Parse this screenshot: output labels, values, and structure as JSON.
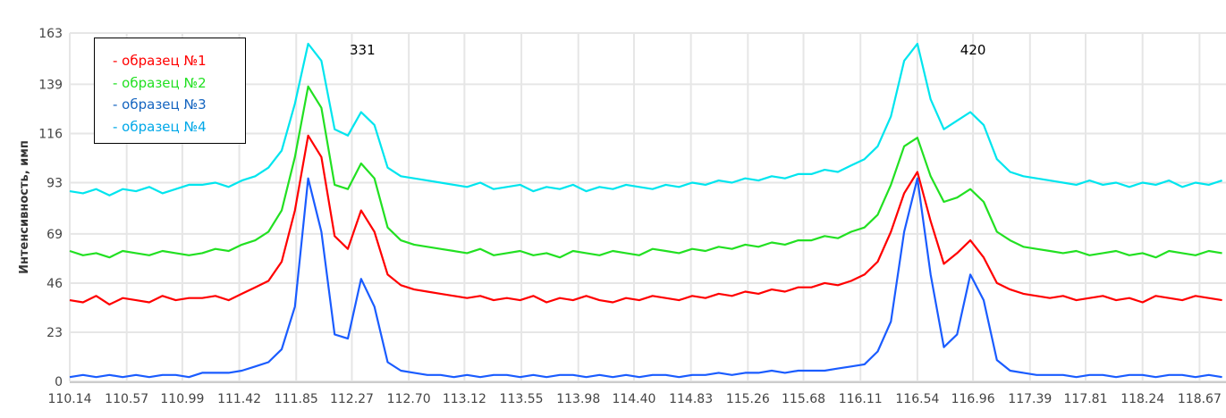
{
  "chart_data": {
    "type": "line",
    "title": "",
    "xlabel": "",
    "ylabel": "Интенсивность, имп",
    "xlim": [
      110.14,
      118.87
    ],
    "ylim": [
      0,
      163
    ],
    "grid": true,
    "legend_position": "top-left",
    "x_ticks": [
      "110.14",
      "110.57",
      "110.99",
      "111.42",
      "111.85",
      "112.27",
      "112.70",
      "113.12",
      "113.55",
      "113.98",
      "114.40",
      "114.83",
      "115.26",
      "115.68",
      "116.11",
      "116.54",
      "116.96",
      "117.39",
      "117.81",
      "118.24",
      "118.67"
    ],
    "y_ticks": [
      "0",
      "23",
      "46",
      "69",
      "93",
      "116",
      "139",
      "163"
    ],
    "annotations": [
      {
        "text": "331",
        "x": 112.35,
        "y": 153
      },
      {
        "text": "420",
        "x": 116.96,
        "y": 153
      }
    ],
    "x": [
      110.14,
      110.24,
      110.34,
      110.44,
      110.54,
      110.64,
      110.74,
      110.84,
      110.94,
      111.04,
      111.14,
      111.24,
      111.34,
      111.44,
      111.54,
      111.64,
      111.74,
      111.84,
      111.94,
      112.04,
      112.14,
      112.24,
      112.34,
      112.44,
      112.54,
      112.64,
      112.74,
      112.84,
      112.94,
      113.04,
      113.14,
      113.24,
      113.34,
      113.44,
      113.54,
      113.64,
      113.74,
      113.84,
      113.94,
      114.04,
      114.14,
      114.24,
      114.34,
      114.44,
      114.54,
      114.64,
      114.74,
      114.84,
      114.94,
      115.04,
      115.14,
      115.24,
      115.34,
      115.44,
      115.54,
      115.64,
      115.74,
      115.84,
      115.94,
      116.04,
      116.14,
      116.24,
      116.34,
      116.44,
      116.54,
      116.64,
      116.74,
      116.84,
      116.94,
      117.04,
      117.14,
      117.24,
      117.34,
      117.44,
      117.54,
      117.64,
      117.74,
      117.84,
      117.94,
      118.04,
      118.14,
      118.24,
      118.34,
      118.44,
      118.54,
      118.64,
      118.74,
      118.84
    ],
    "series": [
      {
        "name": "- образец №1",
        "color": "#ff0000",
        "values": [
          38,
          37,
          40,
          36,
          39,
          38,
          37,
          40,
          38,
          39,
          39,
          40,
          38,
          41,
          44,
          47,
          56,
          80,
          115,
          105,
          68,
          62,
          80,
          70,
          50,
          45,
          43,
          42,
          41,
          40,
          39,
          40,
          38,
          39,
          38,
          40,
          37,
          39,
          38,
          40,
          38,
          37,
          39,
          38,
          40,
          39,
          38,
          40,
          39,
          41,
          40,
          42,
          41,
          43,
          42,
          44,
          44,
          46,
          45,
          47,
          50,
          56,
          70,
          88,
          98,
          75,
          55,
          60,
          66,
          58,
          46,
          43,
          41,
          40,
          39,
          40,
          38,
          39,
          40,
          38,
          39,
          37,
          40,
          39,
          38,
          40,
          39,
          38
        ]
      },
      {
        "name": "- образец №2",
        "color": "#22e022",
        "values": [
          61,
          59,
          60,
          58,
          61,
          60,
          59,
          61,
          60,
          59,
          60,
          62,
          61,
          64,
          66,
          70,
          80,
          105,
          138,
          128,
          92,
          90,
          102,
          95,
          72,
          66,
          64,
          63,
          62,
          61,
          60,
          62,
          59,
          60,
          61,
          59,
          60,
          58,
          61,
          60,
          59,
          61,
          60,
          59,
          62,
          61,
          60,
          62,
          61,
          63,
          62,
          64,
          63,
          65,
          64,
          66,
          66,
          68,
          67,
          70,
          72,
          78,
          92,
          110,
          114,
          96,
          84,
          86,
          90,
          84,
          70,
          66,
          63,
          62,
          61,
          60,
          61,
          59,
          60,
          61,
          59,
          60,
          58,
          61,
          60,
          59,
          61,
          60
        ]
      },
      {
        "name": "- образец №3",
        "color": "#1a5cff",
        "legend_color": "#1565c0",
        "values": [
          2,
          3,
          2,
          3,
          2,
          3,
          2,
          3,
          3,
          2,
          4,
          4,
          4,
          5,
          7,
          9,
          15,
          35,
          95,
          70,
          22,
          20,
          48,
          35,
          9,
          5,
          4,
          3,
          3,
          2,
          3,
          2,
          3,
          3,
          2,
          3,
          2,
          3,
          3,
          2,
          3,
          2,
          3,
          2,
          3,
          3,
          2,
          3,
          3,
          4,
          3,
          4,
          4,
          5,
          4,
          5,
          5,
          5,
          6,
          7,
          8,
          14,
          28,
          70,
          95,
          50,
          16,
          22,
          50,
          38,
          10,
          5,
          4,
          3,
          3,
          3,
          2,
          3,
          3,
          2,
          3,
          3,
          2,
          3,
          3,
          2,
          3,
          2
        ]
      },
      {
        "name": "- образец №4",
        "color": "#00e5ee",
        "legend_color": "#00a8e8",
        "values": [
          89,
          88,
          90,
          87,
          90,
          89,
          91,
          88,
          90,
          92,
          92,
          93,
          91,
          94,
          96,
          100,
          108,
          130,
          158,
          150,
          118,
          115,
          126,
          120,
          100,
          96,
          95,
          94,
          93,
          92,
          91,
          93,
          90,
          91,
          92,
          89,
          91,
          90,
          92,
          89,
          91,
          90,
          92,
          91,
          90,
          92,
          91,
          93,
          92,
          94,
          93,
          95,
          94,
          96,
          95,
          97,
          97,
          99,
          98,
          101,
          104,
          110,
          124,
          150,
          158,
          132,
          118,
          122,
          126,
          120,
          104,
          98,
          96,
          95,
          94,
          93,
          92,
          94,
          92,
          93,
          91,
          93,
          92,
          94,
          91,
          93,
          92,
          94
        ]
      }
    ]
  }
}
